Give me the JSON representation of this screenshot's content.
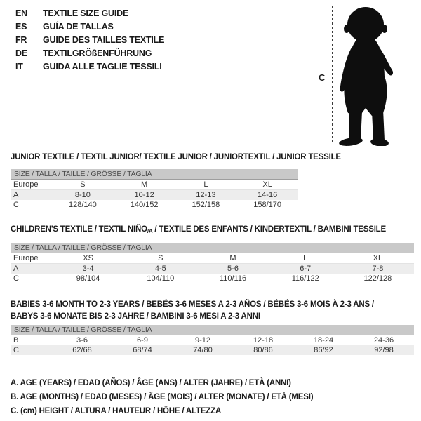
{
  "colors": {
    "background": "#ffffff",
    "size_bar_bg": "#c9c9c9",
    "size_bar_border": "#9e9e9e",
    "shaded_row_bg": "#ededed",
    "text": "#1a1a1a",
    "silhouette": "#0e0e0e"
  },
  "header": {
    "languages": [
      {
        "code": "EN",
        "title": "TEXTILE SIZE GUIDE"
      },
      {
        "code": "ES",
        "title": "GUÍA DE TALLAS"
      },
      {
        "code": "FR",
        "title": "GUIDE DES TAILLES TEXTILE"
      },
      {
        "code": "DE",
        "title": "TEXTILGRÖßENFÜHRUNG"
      },
      {
        "code": "IT",
        "title": "GUIDA ALLE TAGLIE TESSILI"
      }
    ]
  },
  "figure": {
    "image": "toddler-silhouette",
    "height_label": "C"
  },
  "sections": {
    "junior": {
      "title": "JUNIOR TEXTILE / TEXTIL JUNIOR/ TEXTILE JUNIOR / JUNIORTEXTIL / JUNIOR TESSILE",
      "table": {
        "size_bar": "SIZE / TALLA / TAILLE / GRÖSSE / TAGLIA",
        "rows": [
          {
            "label": "Europe",
            "cells": [
              "S",
              "M",
              "L",
              "XL"
            ],
            "shaded": false,
            "header": true
          },
          {
            "label": "A",
            "cells": [
              "8-10",
              "10-12",
              "12-13",
              "14-16"
            ],
            "shaded": true
          },
          {
            "label": "C",
            "cells": [
              "128/140",
              "140/152",
              "152/158",
              "158/170"
            ],
            "shaded": false
          }
        ]
      }
    },
    "children": {
      "title_prefix": "CHILDREN'S TEXTILE / TEXTIL NIÑO",
      "title_sub": "/A",
      "title_suffix": " / TEXTILE DES ENFANTS / KINDERTEXTIL / BAMBINI TESSILE",
      "table": {
        "size_bar": "SIZE / TALLA / TAILLE / GRÖSSE / TAGLIA",
        "rows": [
          {
            "label": "Europe",
            "cells": [
              "XS",
              "S",
              "M",
              "L",
              "XL"
            ],
            "shaded": false,
            "header": true
          },
          {
            "label": "A",
            "cells": [
              "3-4",
              "4-5",
              "5-6",
              "6-7",
              "7-8"
            ],
            "shaded": true
          },
          {
            "label": "C",
            "cells": [
              "98/104",
              "104/110",
              "110/116",
              "116/122",
              "122/128"
            ],
            "shaded": false
          }
        ]
      }
    },
    "babies": {
      "title_line1": "BABIES 3-6 MONTH TO 2-3 YEARS / BEBÉS 3-6 MESES A 2-3 AÑOS / BÉBÉS 3-6 MOIS À 2-3 ANS /",
      "title_line2": "BABYS 3-6 MONATE BIS 2-3 JAHRE / BAMBINI 3-6 MESI A 2-3 ANNI",
      "table": {
        "size_bar": "SIZE / TALLA / TAILLE / GRÖSSE / TAGLIA",
        "rows": [
          {
            "label": "B",
            "cells": [
              "3-6",
              "6-9",
              "9-12",
              "12-18",
              "18-24",
              "24-36"
            ],
            "shaded": false
          },
          {
            "label": "C",
            "cells": [
              "62/68",
              "68/74",
              "74/80",
              "80/86",
              "86/92",
              "92/98"
            ],
            "shaded": true
          }
        ]
      }
    }
  },
  "footnotes": [
    "A. AGE (YEARS) / EDAD (AÑOS) / ÂGE (ANS) / ALTER (JAHRE) / ETÀ (ANNI)",
    "B. AGE (MONTHS) / EDAD (MESES) / ÂGE (MOIS) / ALTER (MONATE) / ETÀ (MESI)",
    "C. (cm) HEIGHT / ALTURA / HAUTEUR / HÖHE / ALTEZZA"
  ]
}
